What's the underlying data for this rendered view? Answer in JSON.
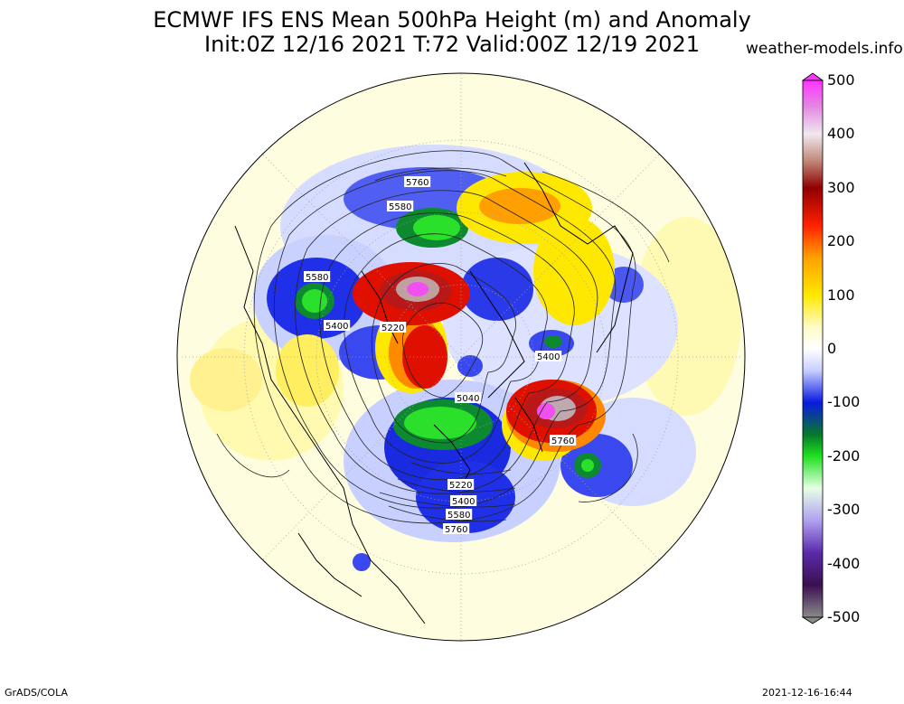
{
  "title": {
    "line1": "ECMWF IFS ENS Mean 500hPa Height (m) and Anomaly",
    "line2": "Init:0Z 12/16 2021  T:72 Valid:00Z 12/19 2021"
  },
  "website": "weather-models.info",
  "footer": {
    "left": "GrADS/COLA",
    "right": "2021-12-16-16:44"
  },
  "colorbar": {
    "ticks": [
      "500",
      "400",
      "300",
      "200",
      "100",
      "0",
      "-100",
      "-200",
      "-300",
      "-400",
      "-500"
    ],
    "colors": [
      "#ff33ff",
      "#cc2bcc",
      "#e0e0e0",
      "#b0504a",
      "#8a0000",
      "#ff1a00",
      "#ff8c00",
      "#ffd200",
      "#ffff66",
      "#fffde0",
      "#ffffff",
      "#d0d8ff",
      "#6670ff",
      "#0a1fe0",
      "#0a8c2a",
      "#22e022",
      "#b8ffb8",
      "#ffffff",
      "#aa88ff",
      "#6a2ac0",
      "#3a006a",
      "#888888"
    ]
  },
  "contour_labels": [
    "5760",
    "5580",
    "5580",
    "5400",
    "5220",
    "5400",
    "5040",
    "5760",
    "5220",
    "5400",
    "5580",
    "5760"
  ]
}
